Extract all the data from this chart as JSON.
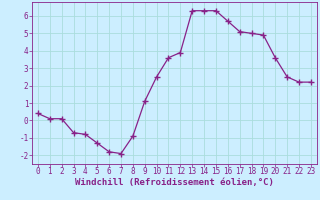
{
  "x": [
    0,
    1,
    2,
    3,
    4,
    5,
    6,
    7,
    8,
    9,
    10,
    11,
    12,
    13,
    14,
    15,
    16,
    17,
    18,
    19,
    20,
    21,
    22,
    23
  ],
  "y": [
    0.4,
    0.1,
    0.1,
    -0.7,
    -0.8,
    -1.3,
    -1.8,
    -1.9,
    -0.9,
    1.1,
    2.5,
    3.6,
    3.9,
    6.3,
    6.3,
    6.3,
    5.7,
    5.1,
    5.0,
    4.9,
    3.6,
    2.5,
    2.2,
    2.2
  ],
  "line_color": "#882288",
  "marker": "+",
  "marker_size": 4,
  "bg_color": "#cceeff",
  "grid_color": "#aadddd",
  "xlabel": "Windchill (Refroidissement éolien,°C)",
  "xlabel_color": "#882288",
  "tick_color": "#882288",
  "spine_color": "#882288",
  "ylim": [
    -2.5,
    6.8
  ],
  "xlim": [
    -0.5,
    23.5
  ],
  "yticks": [
    -2,
    -1,
    0,
    1,
    2,
    3,
    4,
    5,
    6
  ],
  "xticks": [
    0,
    1,
    2,
    3,
    4,
    5,
    6,
    7,
    8,
    9,
    10,
    11,
    12,
    13,
    14,
    15,
    16,
    17,
    18,
    19,
    20,
    21,
    22,
    23
  ],
  "tick_fontsize": 5.5,
  "xlabel_fontsize": 6.5
}
